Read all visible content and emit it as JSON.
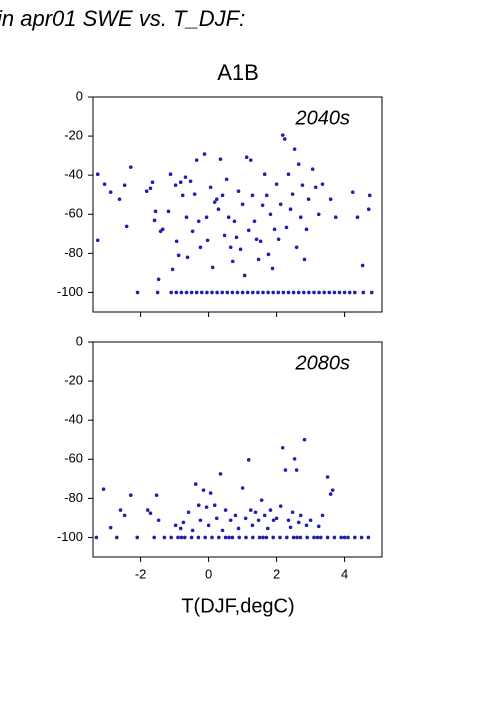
{
  "chart_data": [
    {
      "type": "scatter",
      "title": "in apr01 SWE vs. T_DJF:",
      "subtitle": "A1B",
      "annotation": "2040s",
      "color": "#1f1fb0",
      "annotation_color": "#2424b0",
      "xlim": [
        -3.4,
        5.1
      ],
      "ylim": [
        -110,
        0
      ],
      "xticks": [
        -2,
        0,
        2,
        4
      ],
      "yticks": [
        0,
        -20,
        -40,
        -60,
        -80,
        -100
      ],
      "xtick_labels": false,
      "x": [
        -3.26,
        -3.26,
        -3.06,
        -2.88,
        -2.62,
        -2.47,
        -2.41,
        -2.29,
        -2.09,
        -1.82,
        -1.71,
        -1.65,
        -1.59,
        -1.56,
        -1.47,
        -1.41,
        -1.35,
        -1.18,
        -1.12,
        -1.06,
        -0.97,
        -0.94,
        -0.88,
        -0.82,
        -0.76,
        -0.68,
        -0.65,
        -0.62,
        -0.53,
        -0.47,
        -0.41,
        -0.35,
        -0.29,
        -0.24,
        -0.12,
        -0.06,
        -0.03,
        0.06,
        0.12,
        0.18,
        0.24,
        0.29,
        0.35,
        0.41,
        0.47,
        0.53,
        0.59,
        0.65,
        0.71,
        0.76,
        0.82,
        0.88,
        0.94,
        1.0,
        1.06,
        1.12,
        1.18,
        1.24,
        1.29,
        1.35,
        1.41,
        1.47,
        1.53,
        1.59,
        1.65,
        1.71,
        1.76,
        1.82,
        1.88,
        1.94,
        2.0,
        2.06,
        2.12,
        2.18,
        2.24,
        2.29,
        2.35,
        2.41,
        2.47,
        2.53,
        2.59,
        2.65,
        2.71,
        2.76,
        2.82,
        2.88,
        2.94,
        3.06,
        3.15,
        3.24,
        3.35,
        3.59,
        3.74,
        4.24,
        4.53,
        4.71,
        4.74,
        4.38,
        -1.5,
        -1.1,
        -0.95,
        -0.8,
        -0.65,
        -0.5,
        -0.35,
        -0.2,
        -0.05,
        0.1,
        0.25,
        0.4,
        0.55,
        0.7,
        0.85,
        1.0,
        1.15,
        1.3,
        1.45,
        1.6,
        1.75,
        1.9,
        2.05,
        2.2,
        2.35,
        2.5,
        2.65,
        2.8,
        2.95,
        3.1,
        3.25,
        3.4,
        3.55,
        3.7,
        3.85,
        4.0,
        4.15,
        4.3,
        4.55,
        4.8
      ],
      "values": [
        -73.3,
        -39.5,
        -44.6,
        -48.7,
        -52.3,
        -45.1,
        -66.2,
        -35.9,
        -100,
        -48.2,
        -46.7,
        -43.6,
        -63.1,
        -58.5,
        -93.3,
        -68.7,
        -67.7,
        -58.5,
        -39.5,
        -88.2,
        -45.1,
        -73.8,
        -81,
        -43.6,
        -50.3,
        -41,
        -61.5,
        -82,
        -43.1,
        -68.7,
        -49.7,
        -32.3,
        -63.6,
        -76.9,
        -29.2,
        -61.5,
        -73.3,
        -46.2,
        -87.2,
        -53.8,
        -52.3,
        -57.4,
        -31.8,
        -50.3,
        -70.8,
        -42.1,
        -61.5,
        -76.9,
        -84.1,
        -63.6,
        -71.8,
        -48.2,
        -77.9,
        -54.9,
        -91.3,
        -30.8,
        -68.2,
        -32.3,
        -50.3,
        -63.6,
        -72.8,
        -83.1,
        -73.8,
        -55.4,
        -39.5,
        -50.3,
        -80.5,
        -60,
        -87.7,
        -67.7,
        -44.6,
        -72.8,
        -54.9,
        -19.5,
        -21.5,
        -66.7,
        -39.5,
        -57.4,
        -49.7,
        -26.7,
        -76.9,
        -34.4,
        -61.5,
        -45.1,
        -83.1,
        -67.7,
        -52.3,
        -36.9,
        -46.2,
        -60,
        -44.6,
        -52.3,
        -61.5,
        -48.7,
        -86.2,
        -57.4,
        -50.3,
        -61.5,
        -100,
        -100,
        -100,
        -100,
        -100,
        -100,
        -100,
        -100,
        -100,
        -100,
        -100,
        -100,
        -100,
        -100,
        -100,
        -100,
        -100,
        -100,
        -100,
        -100,
        -100,
        -100,
        -100,
        -100,
        -100,
        -100,
        -100,
        -100,
        -100,
        -100,
        -100,
        -100,
        -100,
        -100,
        -100,
        -100,
        -100,
        -100,
        -100,
        -100
      ]
    },
    {
      "type": "scatter",
      "annotation": "2080s",
      "xlabel": "T(DJF,degC)",
      "color": "#1f1fb0",
      "annotation_color": "#2424b0",
      "xlim": [
        -3.4,
        5.1
      ],
      "ylim": [
        -110,
        0
      ],
      "xticks": [
        -2,
        0,
        2,
        4
      ],
      "yticks": [
        0,
        -20,
        -40,
        -60,
        -80,
        -100
      ],
      "xtick_labels": true,
      "x": [
        -3.3,
        -3.09,
        -2.88,
        -2.59,
        -2.47,
        -2.29,
        -1.79,
        -1.71,
        -1.53,
        -1.47,
        -0.97,
        -0.82,
        -0.74,
        -0.59,
        -0.47,
        -0.38,
        -0.29,
        -0.24,
        -0.15,
        -0.06,
        0,
        0.06,
        0.18,
        0.24,
        0.35,
        0.41,
        0.5,
        0.65,
        0.79,
        0.88,
        1.0,
        1.09,
        1.18,
        1.24,
        1.29,
        1.38,
        1.47,
        1.56,
        1.65,
        1.74,
        1.82,
        1.91,
        2.0,
        2.12,
        2.18,
        2.26,
        2.35,
        2.41,
        2.47,
        2.53,
        2.59,
        2.65,
        2.71,
        2.82,
        2.88,
        3.0,
        3.24,
        3.35,
        3.5,
        3.59,
        3.65,
        -2.7,
        -2.1,
        -1.6,
        -1.3,
        -1.1,
        -0.9,
        -0.7,
        -0.5,
        -0.3,
        -0.1,
        0.1,
        0.3,
        0.5,
        0.7,
        0.9,
        1.1,
        1.3,
        1.5,
        1.7,
        1.9,
        2.1,
        2.3,
        2.5,
        2.7,
        2.9,
        3.1,
        3.3,
        3.5,
        3.7,
        3.9,
        4.1,
        4.3,
        4.5,
        4.7,
        -0.8,
        0.6,
        1.6,
        2.6,
        3.2,
        4.0
      ],
      "values": [
        -100,
        -75.3,
        -95,
        -86,
        -88.7,
        -78.4,
        -86,
        -87.6,
        -78.4,
        -91.2,
        -93.8,
        -95.4,
        -92.3,
        -87.1,
        -96.4,
        -72.7,
        -83.5,
        -91.2,
        -75.8,
        -84.5,
        -93.8,
        -77.3,
        -83.5,
        -90.2,
        -67.5,
        -96.4,
        -86,
        -91.2,
        -88.7,
        -95.4,
        -74.7,
        -90.2,
        -60.3,
        -86,
        -93.8,
        -87.1,
        -91.2,
        -80.9,
        -88.7,
        -95.4,
        -86,
        -91.2,
        -90.2,
        -84,
        -54.1,
        -65.5,
        -91.2,
        -94.8,
        -87.1,
        -59.8,
        -65.5,
        -92.3,
        -88.7,
        -50,
        -93.8,
        -91.2,
        -94.3,
        -88.7,
        -69.1,
        -77.8,
        -75.8,
        -100,
        -100,
        -100,
        -100,
        -100,
        -100,
        -100,
        -100,
        -100,
        -100,
        -100,
        -100,
        -100,
        -100,
        -100,
        -100,
        -100,
        -100,
        -100,
        -100,
        -100,
        -100,
        -100,
        -100,
        -100,
        -100,
        -100,
        -100,
        -100,
        -100,
        -100,
        -100,
        -100,
        -100,
        -100,
        -100,
        -100,
        -100,
        -100,
        -100
      ]
    }
  ]
}
